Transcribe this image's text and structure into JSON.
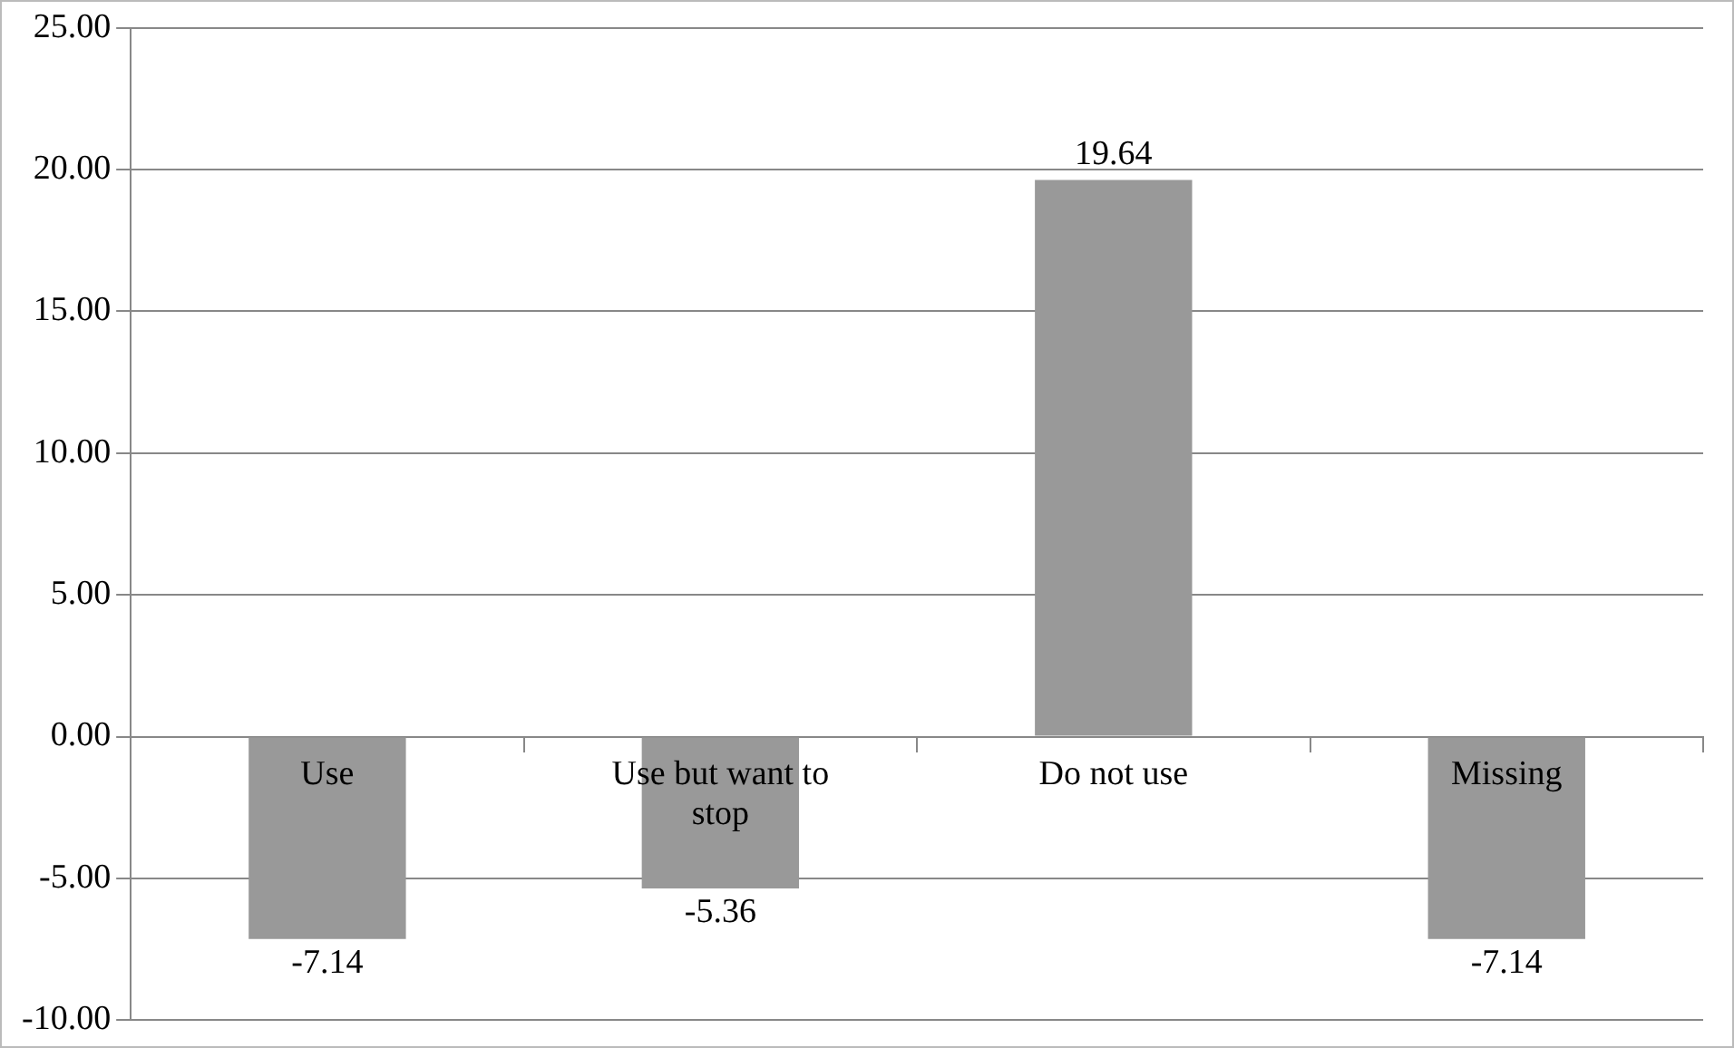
{
  "chart_data": {
    "type": "bar",
    "categories": [
      "Use",
      "Use but want to stop",
      "Do not use",
      "Missing"
    ],
    "values": [
      -7.14,
      -5.36,
      19.64,
      -7.14
    ],
    "color": "#999999",
    "data_labels": true,
    "grid": "y",
    "ylim": [
      -10,
      25
    ],
    "yticks": [
      {
        "value": -10,
        "label": "-10.00"
      },
      {
        "value": -5,
        "label": "-5.00"
      },
      {
        "value": 0,
        "label": "0.00"
      },
      {
        "value": 5,
        "label": "5.00"
      },
      {
        "value": 10,
        "label": "10.00"
      },
      {
        "value": 15,
        "label": "15.00"
      },
      {
        "value": 20,
        "label": "20.00"
      },
      {
        "value": 25,
        "label": "25.00"
      }
    ]
  }
}
